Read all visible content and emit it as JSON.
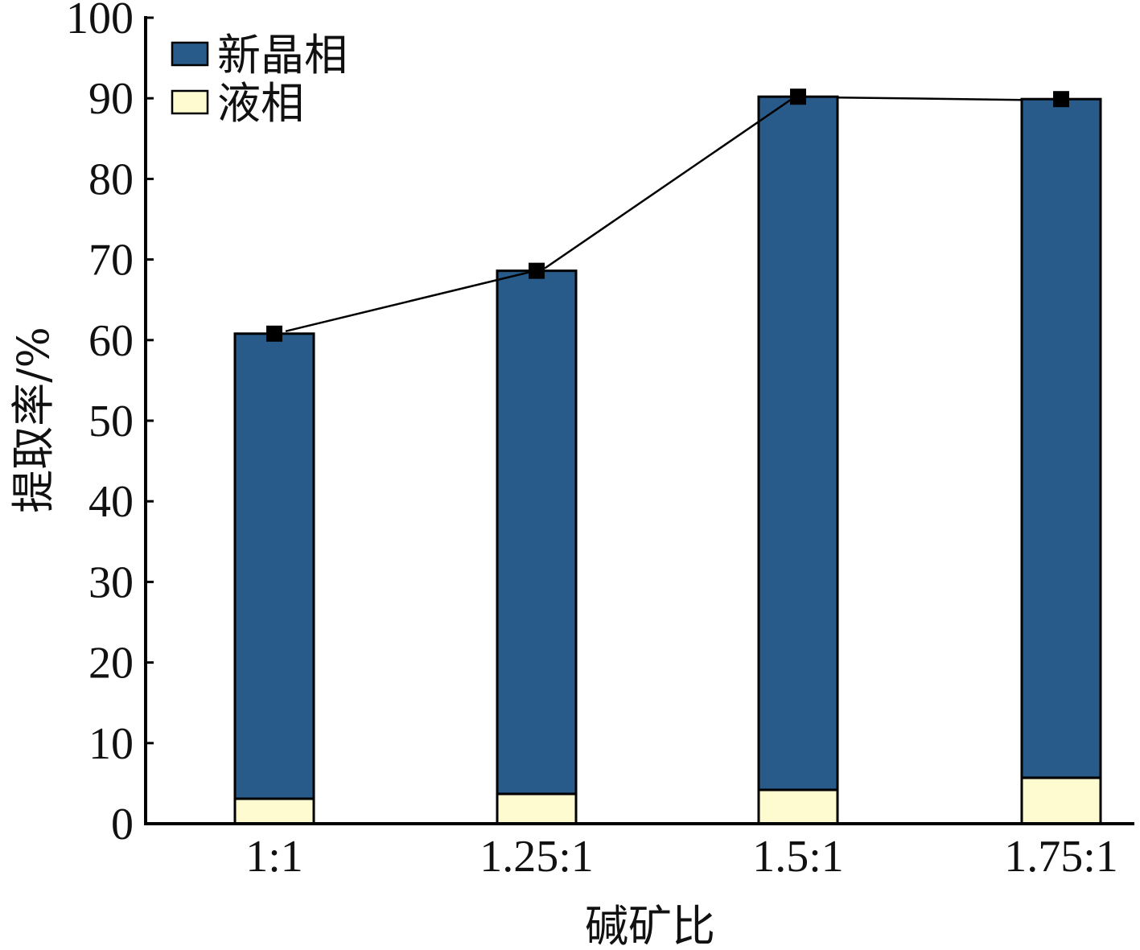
{
  "chart_data": {
    "type": "bar",
    "stacked": true,
    "title": "",
    "xlabel": "碱矿比",
    "ylabel": "提取率/%",
    "ylim": [
      0,
      100
    ],
    "yticks": [
      "0",
      "10",
      "20",
      "30",
      "40",
      "50",
      "60",
      "70",
      "80",
      "90",
      "100"
    ],
    "categories": [
      "1:1",
      "1.25:1",
      "1.5:1",
      "1.75:1"
    ],
    "series": [
      {
        "name": "液相",
        "values": [
          3.1,
          3.7,
          4.2,
          5.7
        ],
        "color": "#fffbd0"
      },
      {
        "name": "新晶相",
        "values": [
          57.7,
          64.9,
          86.0,
          84.2
        ],
        "color": "#285a8a"
      }
    ],
    "total_line": {
      "values": [
        60.8,
        68.6,
        90.2,
        89.9
      ],
      "marker": "square",
      "color": "#000000"
    },
    "legend": {
      "position": "top-left",
      "entries": [
        {
          "label": "新晶相",
          "color": "#285a8a"
        },
        {
          "label": "液相",
          "color": "#fffbd0"
        }
      ]
    },
    "grid": false
  }
}
